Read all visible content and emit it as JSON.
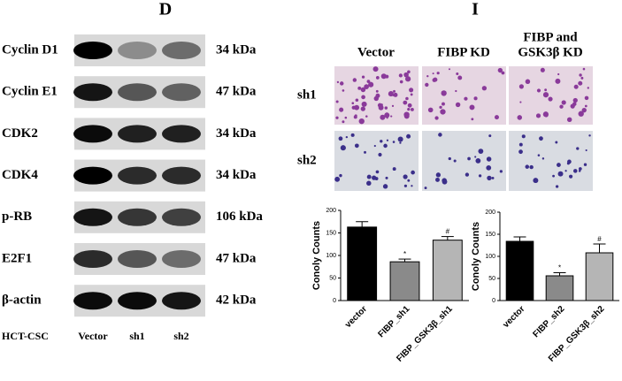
{
  "panel_d": {
    "label": "D",
    "rows": [
      {
        "name": "Cyclin D1",
        "size": "34 kDa"
      },
      {
        "name": "Cyclin E1",
        "size": "47 kDa"
      },
      {
        "name": "CDK2",
        "size": "34 kDa"
      },
      {
        "name": "CDK4",
        "size": "34 kDa"
      },
      {
        "name": "p-RB",
        "size": "106 kDa"
      },
      {
        "name": "E2F1",
        "size": "47 kDa"
      },
      {
        "name": "β-actin",
        "size": "42 kDa"
      }
    ],
    "lanes_label": "HCT-CSC",
    "lanes": [
      "Vector",
      "sh1",
      "sh2"
    ]
  },
  "panel_i": {
    "label": "I",
    "columns": [
      {
        "lines": [
          "Vector"
        ]
      },
      {
        "lines": [
          "FIBP KD"
        ]
      },
      {
        "lines": [
          "FIBP and",
          "GSK3β KD"
        ]
      }
    ],
    "rows": [
      "sh1",
      "sh2"
    ]
  },
  "chart_data": [
    {
      "type": "bar",
      "y_label": "Conoly Counts",
      "categories": [
        "vector",
        "FIBP_sh1",
        "FIBP_GSK3β_sh1"
      ],
      "values": [
        163,
        86,
        134
      ],
      "errors": [
        12,
        6,
        8
      ],
      "markers": [
        null,
        "*",
        "#"
      ],
      "colors": [
        "#000000",
        "#8a8a8a",
        "#b5b5b5"
      ],
      "ylim": [
        0,
        200
      ],
      "yticks": [
        0,
        50,
        100,
        150,
        200
      ]
    },
    {
      "type": "bar",
      "y_label": "Conoly Counts",
      "categories": [
        "vector",
        "FIBP_sh2",
        "FIBP_GSK3β_sh2"
      ],
      "values": [
        134,
        56,
        108
      ],
      "errors": [
        10,
        7,
        20
      ],
      "markers": [
        null,
        "*",
        "#"
      ],
      "colors": [
        "#000000",
        "#8a8a8a",
        "#b5b5b5"
      ],
      "ylim": [
        0,
        200
      ],
      "yticks": [
        0,
        50,
        100,
        150,
        200
      ]
    }
  ]
}
